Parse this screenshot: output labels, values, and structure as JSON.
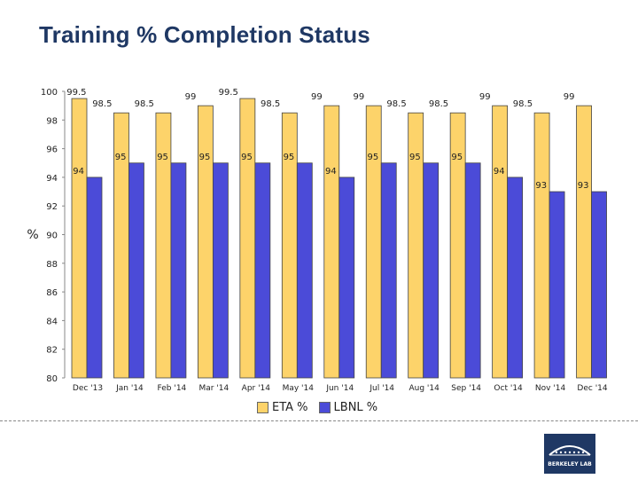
{
  "title": "Training % Completion Status",
  "colors": {
    "eta": "#fdd36a",
    "lbnl": "#4b4bd8",
    "logo_bg": "#1f3864"
  },
  "logo": {
    "icon": "berkeley-lab-logo",
    "text": "BERKELEY LAB"
  },
  "chart_data": {
    "type": "bar",
    "title": "Training % Completion Status",
    "xlabel": "",
    "ylabel": "%",
    "ylim": [
      80,
      100
    ],
    "yticks": [
      80,
      82,
      84,
      86,
      88,
      90,
      92,
      94,
      96,
      98,
      100
    ],
    "grid": false,
    "legend_position": "bottom",
    "categories": [
      "Dec '13",
      "Jan '14",
      "Feb '14",
      "Mar '14",
      "Apr '14",
      "May '14",
      "Jun '14",
      "Jul '14",
      "Aug '14",
      "Sep '14",
      "Oct '14",
      "Nov '14",
      "Dec '14"
    ],
    "series": [
      {
        "name": "ETA %",
        "color": "#fdd36a",
        "values": [
          99.5,
          98.5,
          98.5,
          99,
          99.5,
          98.5,
          99,
          99,
          98.5,
          98.5,
          99,
          98.5,
          99
        ]
      },
      {
        "name": "LBNL %",
        "color": "#4b4bd8",
        "values": [
          94,
          95,
          95,
          95,
          95,
          95,
          94,
          95,
          95,
          95,
          94,
          93,
          93
        ]
      }
    ]
  }
}
